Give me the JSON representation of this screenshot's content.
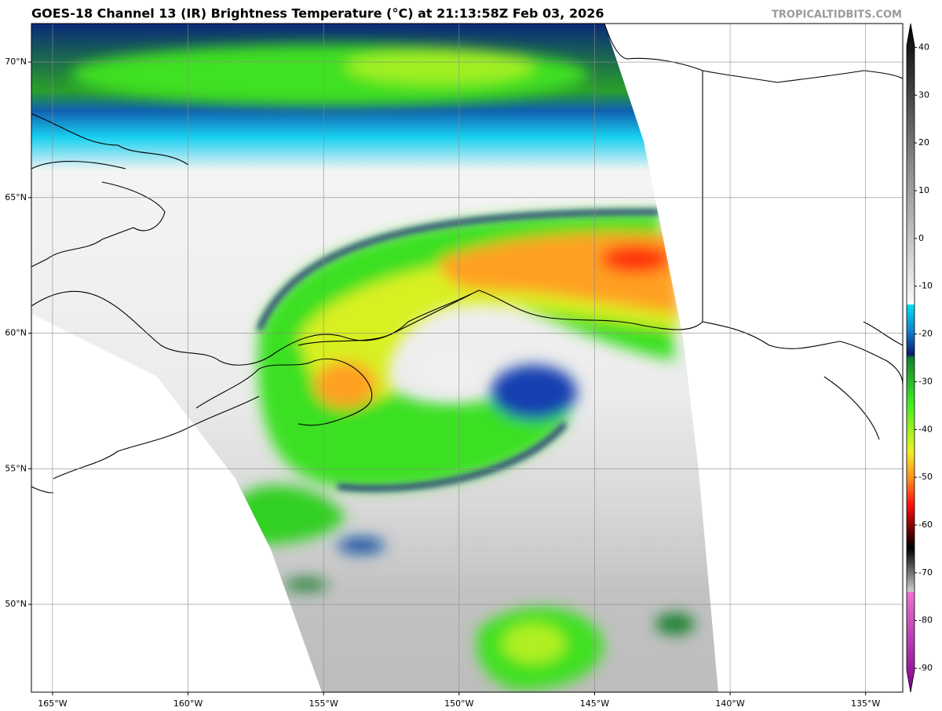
{
  "title": "GOES-18 Channel 13 (IR) Brightness Temperature (°C) at 21:13:58Z Feb 03, 2026",
  "watermark": "TROPICALTIDBITS.COM",
  "map": {
    "lonlim": [
      -165.78,
      -133.63
    ],
    "latlim": [
      46.76,
      71.42
    ],
    "lon_ticks": [
      {
        "value": -165,
        "label": "165°W"
      },
      {
        "value": -160,
        "label": "160°W"
      },
      {
        "value": -155,
        "label": "155°W"
      },
      {
        "value": -150,
        "label": "150°W"
      },
      {
        "value": -145,
        "label": "145°W"
      },
      {
        "value": -140,
        "label": "140°W"
      },
      {
        "value": -135,
        "label": "135°W"
      }
    ],
    "lat_ticks": [
      {
        "value": 70,
        "label": "70°N"
      },
      {
        "value": 65,
        "label": "65°N"
      },
      {
        "value": 60,
        "label": "60°N"
      },
      {
        "value": 55,
        "label": "55°N"
      },
      {
        "value": 50,
        "label": "50°N"
      }
    ]
  },
  "colorbar": {
    "lim": [
      -95,
      45
    ],
    "ticks": [
      40,
      30,
      20,
      10,
      0,
      -10,
      -20,
      -30,
      -40,
      -50,
      -60,
      -70,
      -80,
      -90
    ]
  }
}
